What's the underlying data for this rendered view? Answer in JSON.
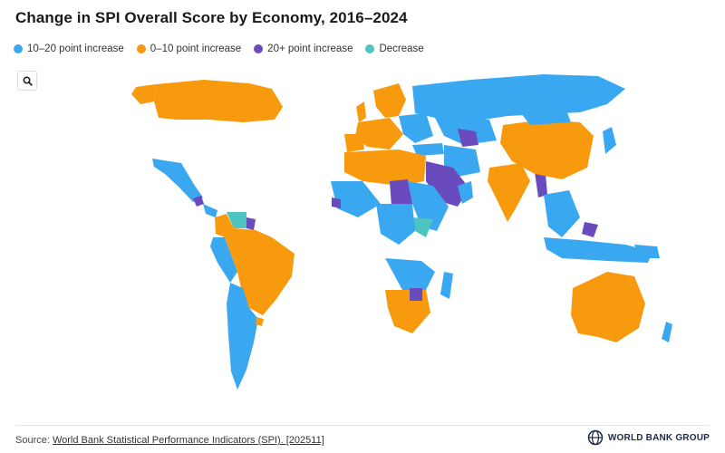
{
  "header": {
    "title": "Change in SPI Overall Score by Economy, 2016–2024"
  },
  "legend": [
    {
      "label": "10–20 point increase",
      "color": "#3aa8f0"
    },
    {
      "label": "0–10 point increase",
      "color": "#f79a0e"
    },
    {
      "label": "20+ point increase",
      "color": "#6a4bbd"
    },
    {
      "label": "Decrease",
      "color": "#4dc4bf"
    }
  ],
  "controls": {
    "zoom_icon": "search-icon"
  },
  "map": {
    "regions": [
      {
        "name": "Canada",
        "category": "0–10 point increase"
      },
      {
        "name": "Alaska",
        "category": "0–10 point increase"
      },
      {
        "name": "United States",
        "category": "none"
      },
      {
        "name": "Mexico",
        "category": "10–20 point increase"
      },
      {
        "name": "Venezuela",
        "category": "Decrease"
      },
      {
        "name": "Brazil",
        "category": "0–10 point increase"
      },
      {
        "name": "Russia",
        "category": "10–20 point increase"
      },
      {
        "name": "China",
        "category": "0–10 point increase"
      },
      {
        "name": "India",
        "category": "0–10 point increase"
      },
      {
        "name": "Saudi Arabia",
        "category": "20+ point increase"
      },
      {
        "name": "Australia",
        "category": "0–10 point increase"
      },
      {
        "name": "Somalia",
        "category": "Decrease"
      },
      {
        "name": "Zimbabwe",
        "category": "20+ point increase"
      }
    ]
  },
  "footer": {
    "source_prefix": "Source: ",
    "source_link": "World Bank Statistical Performance Indicators (SPI). [202511]",
    "brand": "WORLD BANK GROUP"
  }
}
